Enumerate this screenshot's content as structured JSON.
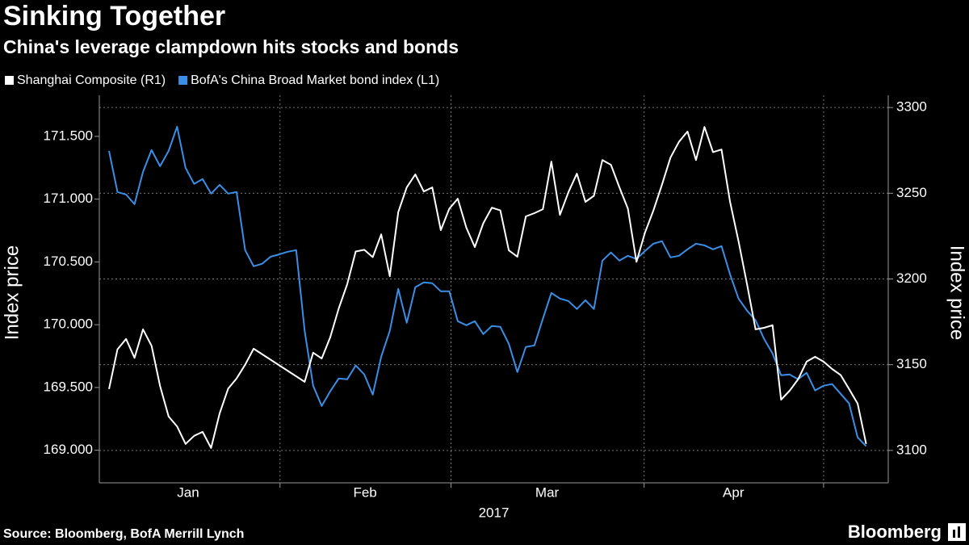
{
  "chart_data": {
    "type": "line",
    "title": "Sinking Together",
    "subtitle": "China's leverage clampdown hits stocks and bonds",
    "source": "Source: Bloomberg, BofA Merrill Lynch",
    "brand": "Bloomberg",
    "xlabel": "2017",
    "ylabel": "Index price",
    "y2label": "Index price",
    "xlim": [
      -1.14,
      91.6
    ],
    "xticks": [
      20.1,
      40.2,
      62.9,
      84.0
    ],
    "x_labels": [
      {
        "value": 9.3,
        "label": "Jan"
      },
      {
        "value": 30.1,
        "label": "Feb"
      },
      {
        "value": 51.5,
        "label": "Mar"
      },
      {
        "value": 73.4,
        "label": "Apr"
      }
    ],
    "ylim": [
      168.76,
      171.75
    ],
    "yticks": [
      {
        "value": 169,
        "label": "169.000"
      },
      {
        "value": 169.5,
        "label": "169.500"
      },
      {
        "value": 170,
        "label": "170.000"
      },
      {
        "value": 170.5,
        "label": "170.500"
      },
      {
        "value": 171,
        "label": "171.000"
      },
      {
        "value": 171.5,
        "label": "171.500"
      }
    ],
    "y2lim": [
      3082.5,
      3301.5
    ],
    "y2ticks": [
      3100,
      3150,
      3200,
      3250,
      3300
    ],
    "grid": true,
    "series": [
      {
        "name": "Shanghai Composite (R1)",
        "color": "#ffffff",
        "axis": "y2",
        "x": [
          0,
          1,
          2,
          3,
          4,
          5,
          6,
          7,
          8,
          9,
          10,
          11,
          12,
          13,
          14,
          15,
          16,
          17,
          23,
          24,
          25,
          26,
          27,
          28,
          29,
          30,
          31,
          32,
          33,
          34,
          35,
          36,
          37,
          38,
          39,
          40,
          41,
          42,
          43,
          44,
          45,
          46,
          47,
          48,
          49,
          50,
          51,
          52,
          53,
          54,
          55,
          56,
          57,
          58,
          59,
          60,
          61,
          62,
          63,
          64,
          65,
          66,
          67,
          68,
          69,
          70,
          71,
          72,
          73,
          74,
          75,
          76,
          77,
          78,
          79,
          80,
          81,
          82,
          83,
          84,
          85,
          86,
          87,
          88,
          89
        ],
        "values": [
          3135.8,
          3159,
          3165,
          3154,
          3170.6,
          3161,
          3137.6,
          3119.8,
          3114,
          3103.8,
          3108.5,
          3110.8,
          3101.4,
          3121.6,
          3136,
          3142,
          3150,
          3159.3,
          3140,
          3157,
          3153.6,
          3165.9,
          3182.8,
          3197,
          3216,
          3217,
          3212.7,
          3226,
          3201.6,
          3239,
          3253.4,
          3261,
          3251,
          3253.4,
          3228.5,
          3241,
          3246.8,
          3229.9,
          3218.6,
          3232.5,
          3241.6,
          3240,
          3216.7,
          3213,
          3236.5,
          3238.4,
          3240.7,
          3268.5,
          3237.4,
          3250.6,
          3261.4,
          3245,
          3248.5,
          3269.4,
          3266.6,
          3253.4,
          3241,
          3210,
          3227,
          3240,
          3255,
          3270.8,
          3280,
          3286,
          3269.4,
          3288.7,
          3274,
          3275.5,
          3245,
          3222,
          3197,
          3170.6,
          3171.5,
          3173,
          3129.6,
          3134.8,
          3141.4,
          3151.8,
          3154.6,
          3151.8,
          3147.5,
          3144,
          3135.8,
          3127.3,
          3103.8
        ]
      },
      {
        "name": "BofA's China Broad Market bond index (L1)",
        "color": "#3a8ee6",
        "axis": "y",
        "x": [
          0,
          1,
          2,
          3,
          4,
          5,
          6,
          7,
          8,
          9,
          10,
          11,
          12,
          13,
          14,
          15,
          16,
          17,
          18,
          19,
          20,
          21,
          22,
          23,
          24,
          25,
          26,
          27,
          28,
          29,
          30,
          31,
          32,
          33,
          34,
          35,
          36,
          37,
          38,
          39,
          40,
          41,
          42,
          43,
          44,
          45,
          46,
          47,
          48,
          49,
          50,
          51,
          52,
          53,
          54,
          55,
          56,
          57,
          58,
          59,
          60,
          61,
          62,
          63,
          64,
          65,
          66,
          67,
          68,
          69,
          70,
          71,
          72,
          73,
          74,
          75,
          76,
          77,
          78,
          79,
          80,
          81,
          82,
          83,
          84,
          85,
          86,
          87,
          88,
          89
        ],
        "values": [
          171.384,
          171.057,
          171.037,
          170.96,
          171.217,
          171.391,
          171.262,
          171.384,
          171.577,
          171.249,
          171.121,
          171.16,
          171.044,
          171.114,
          171.044,
          171.057,
          170.594,
          170.465,
          170.485,
          170.542,
          170.56,
          170.581,
          170.594,
          169.951,
          169.514,
          169.353,
          169.469,
          169.572,
          169.566,
          169.675,
          169.604,
          169.443,
          169.746,
          169.951,
          170.285,
          170.015,
          170.298,
          170.337,
          170.33,
          170.266,
          170.266,
          170.028,
          169.996,
          170.028,
          169.925,
          169.99,
          169.983,
          169.848,
          169.623,
          169.823,
          169.835,
          170.048,
          170.253,
          170.208,
          170.189,
          170.125,
          170.195,
          170.125,
          170.51,
          170.575,
          170.51,
          170.549,
          170.523,
          170.587,
          170.645,
          170.665,
          170.536,
          170.549,
          170.6,
          170.645,
          170.632,
          170.6,
          170.626,
          170.401,
          170.208,
          170.112,
          170.035,
          169.887,
          169.771,
          169.598,
          169.604,
          169.566,
          169.617,
          169.476,
          169.514,
          169.527,
          169.45,
          169.373,
          169.103,
          169.032
        ]
      }
    ]
  }
}
